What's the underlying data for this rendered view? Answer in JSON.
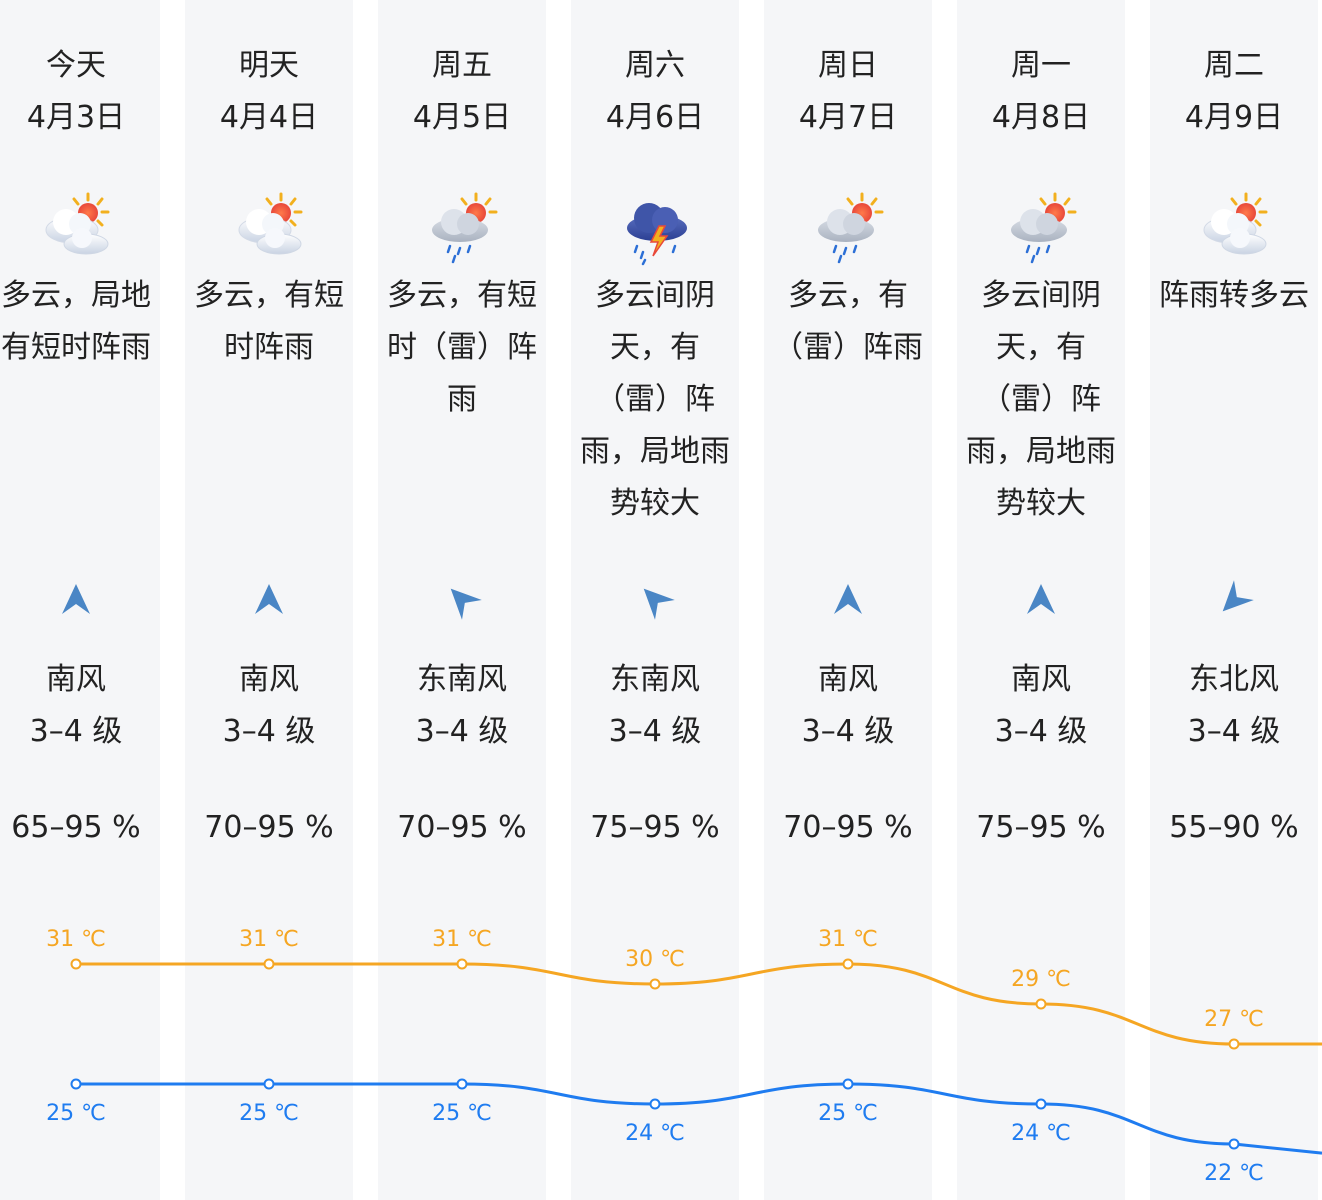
{
  "colors": {
    "high": "#f5a623",
    "low": "#1f7cf0",
    "column_bg": "#f5f6f8",
    "wind_arrow": "#4a86c5"
  },
  "days": [
    {
      "day": "今天",
      "date": "4月3日",
      "icon": "partly-cloudy-icon",
      "desc_lines": [
        "多云，局地",
        "有短时阵雨"
      ],
      "wind_dir": "南风",
      "wind_level": "3–4 级",
      "wind_angle": 0,
      "humidity": "65–95 %"
    },
    {
      "day": "明天",
      "date": "4月4日",
      "icon": "partly-cloudy-icon",
      "desc_lines": [
        "多云，有短",
        "时阵雨"
      ],
      "wind_dir": "南风",
      "wind_level": "3–4 级",
      "wind_angle": 0,
      "humidity": "70–95 %"
    },
    {
      "day": "周五",
      "date": "4月5日",
      "icon": "cloud-rain-sun-icon",
      "desc_lines": [
        "多云，有短",
        "时（雷）阵",
        "雨"
      ],
      "wind_dir": "东南风",
      "wind_level": "3–4 级",
      "wind_angle": -45,
      "humidity": "70–95 %"
    },
    {
      "day": "周六",
      "date": "4月6日",
      "icon": "thunderstorm-icon",
      "desc_lines": [
        "多云间阴",
        "天，有",
        "（雷）阵",
        "雨，局地雨",
        "势较大"
      ],
      "wind_dir": "东南风",
      "wind_level": "3–4 级",
      "wind_angle": -45,
      "humidity": "75–95 %"
    },
    {
      "day": "周日",
      "date": "4月7日",
      "icon": "cloud-rain-sun-icon",
      "desc_lines": [
        "多云，有",
        "（雷）阵雨"
      ],
      "wind_dir": "南风",
      "wind_level": "3–4 级",
      "wind_angle": 0,
      "humidity": "70–95 %"
    },
    {
      "day": "周一",
      "date": "4月8日",
      "icon": "cloud-rain-sun-icon",
      "desc_lines": [
        "多云间阴",
        "天，有",
        "（雷）阵",
        "雨，局地雨",
        "势较大"
      ],
      "wind_dir": "南风",
      "wind_level": "3–4 级",
      "wind_angle": 0,
      "humidity": "75–95 %"
    },
    {
      "day": "周二",
      "date": "4月9日",
      "icon": "partly-cloudy-icon",
      "desc_lines": [
        "阵雨转多云"
      ],
      "wind_dir": "东北风",
      "wind_level": "3–4 级",
      "wind_angle": -135,
      "humidity": "55–90 %"
    }
  ],
  "chart_data": {
    "type": "line",
    "categories": [
      "今天",
      "明天",
      "周五",
      "周六",
      "周日",
      "周一",
      "周二"
    ],
    "series": [
      {
        "values": [
          31,
          31,
          31,
          30,
          31,
          29,
          27
        ],
        "labels": [
          "31 ℃",
          "31 ℃",
          "31 ℃",
          "30 ℃",
          "31 ℃",
          "29 ℃",
          "27 ℃"
        ],
        "color": "#f5a623"
      },
      {
        "values": [
          25,
          25,
          25,
          24,
          25,
          24,
          22
        ],
        "labels": [
          "25 ℃",
          "25 ℃",
          "25 ℃",
          "24 ℃",
          "25 ℃",
          "24 ℃",
          "22 ℃"
        ],
        "color": "#1f7cf0"
      }
    ],
    "grid": false,
    "legend": "none"
  }
}
